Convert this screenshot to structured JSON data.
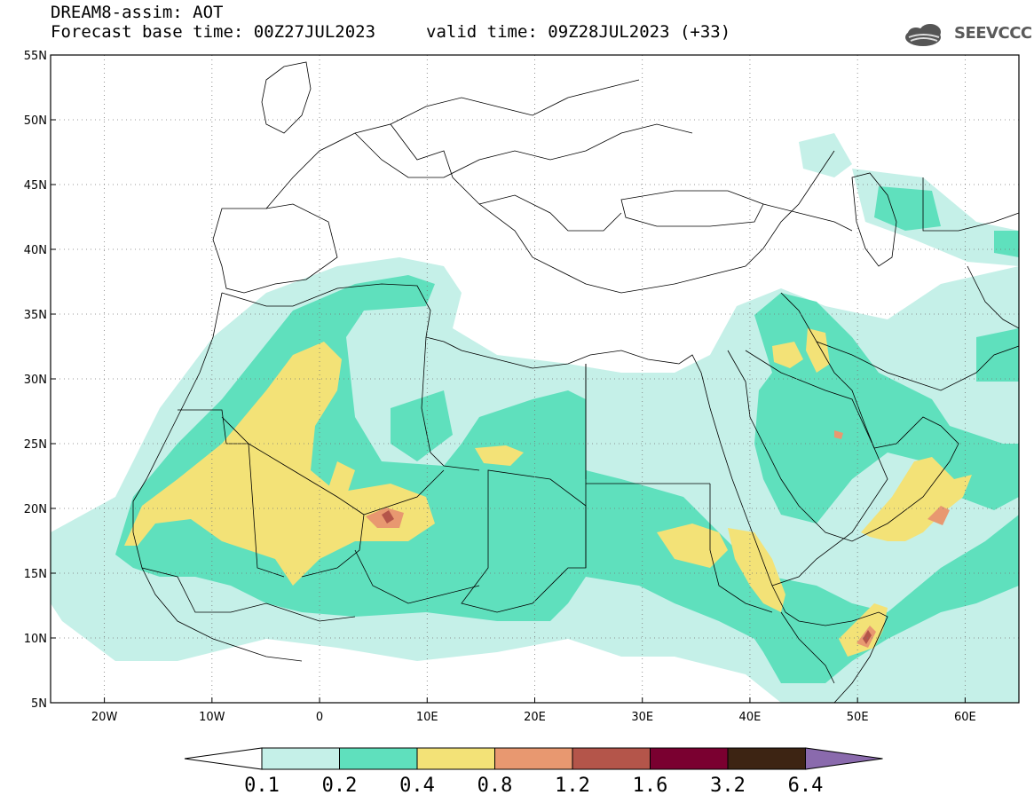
{
  "header": {
    "model_line": "DREAM8-assim: AOT",
    "base_time_line": "Forecast base time: 00Z27JUL2023",
    "valid_time_line": "valid time: 09Z28JUL2023 (+33)",
    "logo_text": "SEEVCCC"
  },
  "map": {
    "projection": "equirectangular",
    "lon_range": [
      -25,
      65
    ],
    "lat_range": [
      5,
      55
    ],
    "lat_labels": [
      "55N",
      "50N",
      "45N",
      "40N",
      "35N",
      "30N",
      "25N",
      "20N",
      "15N",
      "10N",
      "5N"
    ],
    "lat_values": [
      55,
      50,
      45,
      40,
      35,
      30,
      25,
      20,
      15,
      10,
      5
    ],
    "lon_labels": [
      "20W",
      "10W",
      "0",
      "10E",
      "20E",
      "30E",
      "40E",
      "50E",
      "60E"
    ],
    "lon_values": [
      -20,
      -10,
      0,
      10,
      20,
      30,
      40,
      50,
      60
    ],
    "grid": "dotted"
  },
  "colorbar": {
    "levels": [
      "0.1",
      "0.2",
      "0.4",
      "0.8",
      "1.2",
      "1.6",
      "3.2",
      "6.4"
    ],
    "colors": [
      "#ffffff",
      "#c5f0e8",
      "#5fe0bd",
      "#f3e277",
      "#e89870",
      "#b4554a",
      "#7a0030",
      "#3d2413",
      "#8a6aad"
    ]
  }
}
